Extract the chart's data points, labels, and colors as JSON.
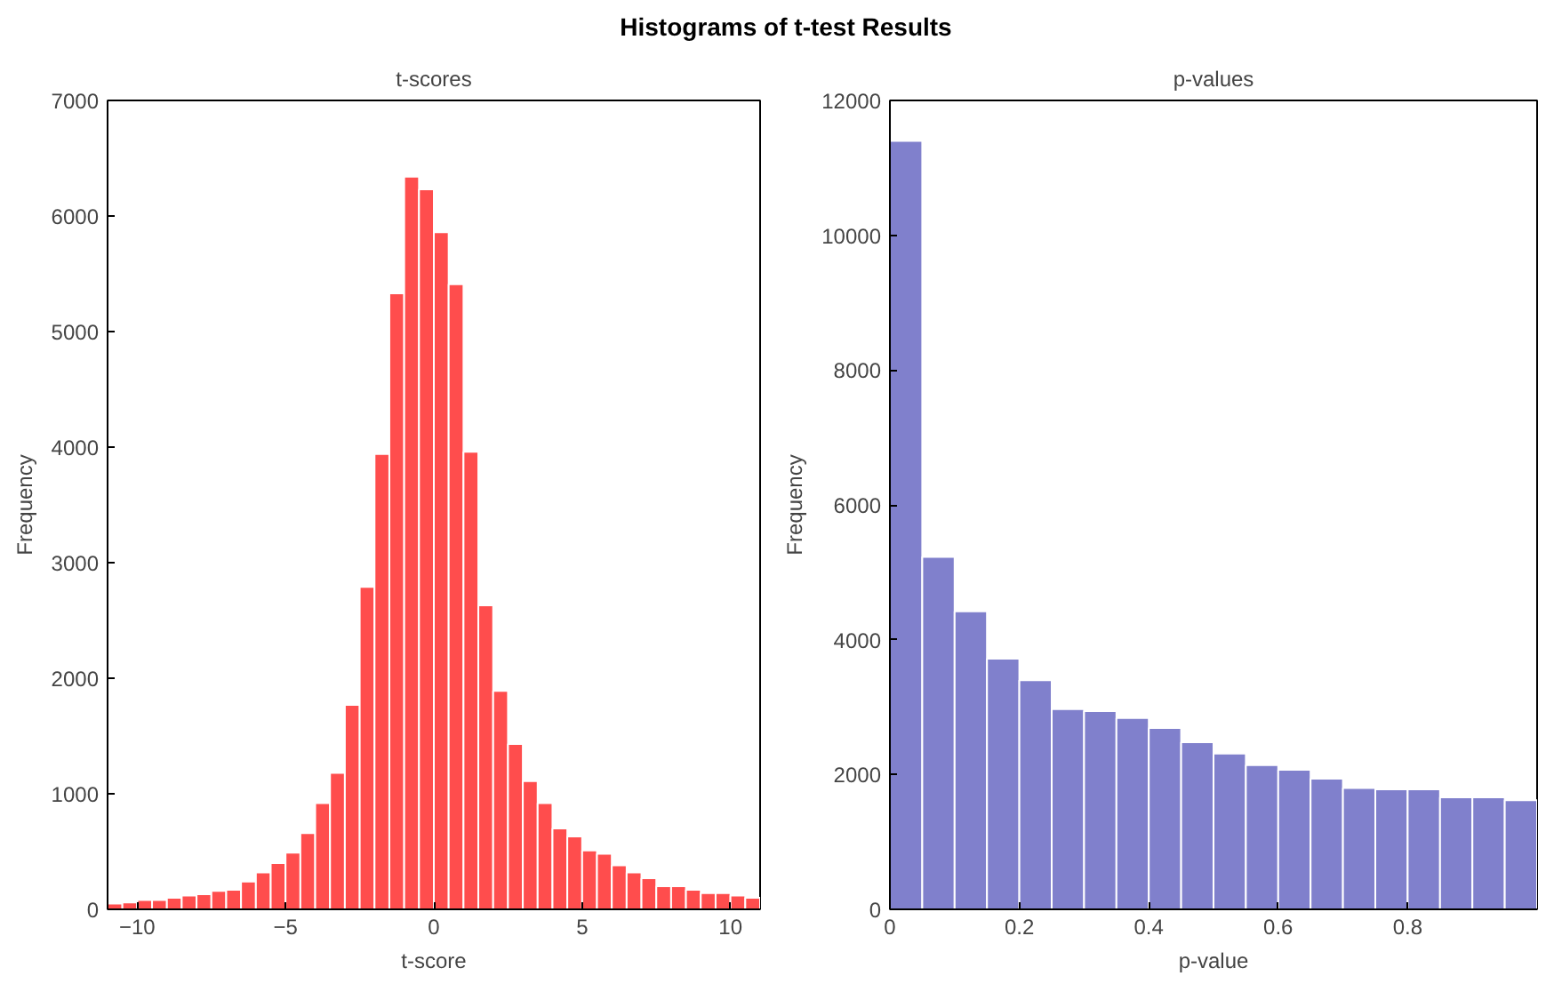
{
  "chart_data": [
    {
      "type": "histogram",
      "title": "t-scores",
      "annotations": [
        "Histograms of t-test Results"
      ],
      "xlabel": "t-score",
      "ylabel": "Frequency",
      "color": "#ff4d4d",
      "bins": [
        -11,
        -10.5,
        -10,
        -9.5,
        -9,
        -8.5,
        -8,
        -7.5,
        -7,
        -6.5,
        -6,
        -5.5,
        -5,
        -4.5,
        -4,
        -3.5,
        -3,
        -2.5,
        -2,
        -1.5,
        -1,
        -0.5,
        0,
        0.5,
        1,
        1.5,
        2,
        2.5,
        3,
        3.5,
        4,
        4.5,
        5,
        5.5,
        6,
        6.5,
        7,
        7.5,
        8,
        8.5,
        9,
        9.5,
        10,
        10.5,
        11
      ],
      "values": [
        50,
        60,
        80,
        80,
        100,
        120,
        130,
        160,
        170,
        240,
        320,
        400,
        490,
        660,
        920,
        1180,
        1770,
        2790,
        3940,
        5330,
        6340,
        6230,
        5860,
        5410,
        3960,
        2630,
        1890,
        1430,
        1110,
        920,
        700,
        630,
        510,
        480,
        380,
        320,
        270,
        200,
        200,
        170,
        140,
        140,
        120,
        100
      ],
      "xlim": [
        -11,
        11
      ],
      "xticks": [
        -10,
        -5,
        0,
        5,
        10
      ],
      "ylim": [
        0,
        7000
      ],
      "yticks": [
        0,
        1000,
        2000,
        3000,
        4000,
        5000,
        6000,
        7000
      ]
    },
    {
      "type": "histogram",
      "title": "p-values",
      "xlabel": "p-value",
      "ylabel": "Frequency",
      "color": "#8080cc",
      "bins": [
        0,
        0.05,
        0.1,
        0.15,
        0.2,
        0.25,
        0.3,
        0.35,
        0.4,
        0.45,
        0.5,
        0.55,
        0.6,
        0.65,
        0.7,
        0.75,
        0.8,
        0.85,
        0.9,
        0.95,
        1
      ],
      "values": [
        11400,
        5230,
        4420,
        3720,
        3400,
        2970,
        2940,
        2840,
        2690,
        2480,
        2310,
        2140,
        2070,
        1940,
        1800,
        1780,
        1780,
        1660,
        1660,
        1620
      ],
      "xlim": [
        0,
        1
      ],
      "xticks": [
        0,
        0.2,
        0.4,
        0.6,
        0.8
      ],
      "ylim": [
        0,
        12000
      ],
      "yticks": [
        0,
        2000,
        4000,
        6000,
        8000,
        10000,
        12000
      ]
    }
  ]
}
